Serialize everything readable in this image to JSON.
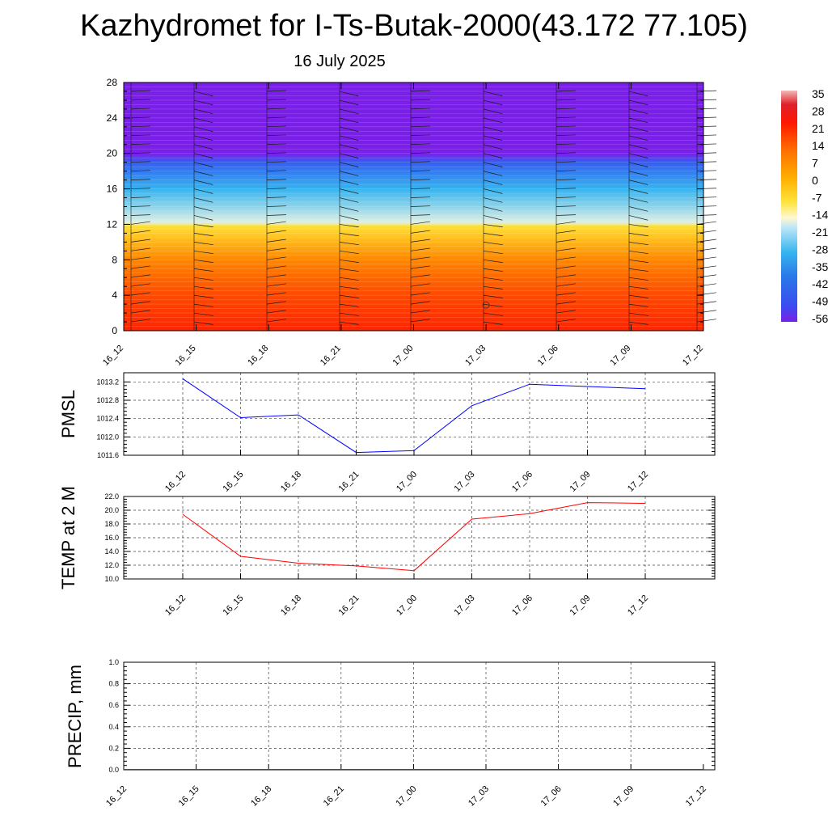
{
  "header": {
    "title": "Kazhydromet for I-Ts-Butak-2000(43.172 77.105)",
    "subtitle": "16 July 2025"
  },
  "colorbar": {
    "labels": [
      "35",
      "28",
      "21",
      "14",
      "7",
      "0",
      "-7",
      "-14",
      "-21",
      "-28",
      "-35",
      "-42",
      "-49",
      "-56"
    ]
  },
  "chart_data": [
    {
      "type": "heatmap",
      "title": "",
      "xlabel": "",
      "ylabel": "",
      "x": [
        "16_12",
        "16_15",
        "16_18",
        "16_21",
        "17_00",
        "17_03",
        "17_06",
        "17_09",
        "17_12"
      ],
      "y_ticks": [
        0,
        4,
        8,
        12,
        16,
        20,
        24,
        28
      ],
      "ylim": [
        0,
        28
      ],
      "levels": [
        35,
        28,
        21,
        14,
        7,
        0,
        -7,
        -14,
        -21,
        -28,
        -35,
        -42,
        -49,
        -56
      ],
      "temperature_profile": [
        {
          "y": 0,
          "value": 24
        },
        {
          "y": 4,
          "value": 18
        },
        {
          "y": 8,
          "value": 10
        },
        {
          "y": 11.8,
          "value": -6
        },
        {
          "y": 12.2,
          "value": -15
        },
        {
          "y": 16,
          "value": -28
        },
        {
          "y": 19,
          "value": -45
        },
        {
          "y": 20,
          "value": -56
        },
        {
          "y": 21.5,
          "value": -60
        },
        {
          "y": 28,
          "value": -60
        }
      ],
      "wind_barbs": true,
      "colors": {
        "low": "#7a1fe8",
        "high": "#ff1500"
      }
    },
    {
      "type": "line",
      "ylabel": "PMSL",
      "x": [
        "16_12",
        "16_15",
        "16_18",
        "16_21",
        "17_00",
        "17_03",
        "17_06",
        "17_09",
        "17_12"
      ],
      "series": [
        {
          "values": [
            1013.27,
            1012.42,
            1012.48,
            1011.66,
            1011.7,
            1012.68,
            1013.15,
            1013.1,
            1013.05
          ]
        }
      ],
      "ylim": [
        1011.6,
        1013.4
      ],
      "y_ticks": [
        "1011.6",
        "1012.0",
        "1012.4",
        "1012.8",
        "1013.2"
      ],
      "grid": true,
      "color": "#0000ff"
    },
    {
      "type": "line",
      "ylabel": "TEMP at 2 M",
      "x": [
        "16_12",
        "16_15",
        "16_18",
        "16_21",
        "17_00",
        "17_03",
        "17_06",
        "17_09",
        "17_12"
      ],
      "series": [
        {
          "values": [
            19.4,
            13.3,
            12.3,
            11.9,
            11.2,
            18.7,
            19.5,
            21.1,
            21.0
          ]
        }
      ],
      "ylim": [
        10.0,
        22.0
      ],
      "y_ticks": [
        "10.0",
        "12.0",
        "14.0",
        "16.0",
        "18.0",
        "20.0",
        "22.0"
      ],
      "grid": true,
      "color": "#ff0000"
    },
    {
      "type": "line",
      "ylabel": "PRECIP, mm",
      "x": [
        "16_12",
        "16_15",
        "16_18",
        "16_21",
        "17_00",
        "17_03",
        "17_06",
        "17_09",
        "17_12"
      ],
      "series": [
        {
          "values": [
            0,
            0,
            0,
            0,
            0,
            0,
            0,
            0,
            0
          ]
        }
      ],
      "ylim": [
        0,
        1.0
      ],
      "y_ticks": [
        "0.0",
        "0.2",
        "0.4",
        "0.6",
        "0.8",
        "1.0"
      ],
      "grid": true,
      "color": "#008000"
    }
  ]
}
